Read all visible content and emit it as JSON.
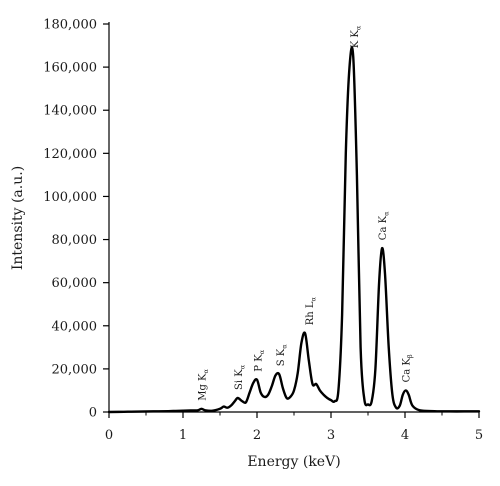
{
  "chart_data": {
    "type": "line",
    "xlabel": "Energy (keV)",
    "ylabel": "Intensity (a.u.)",
    "xlim": [
      0,
      5
    ],
    "ylim": [
      0,
      180000
    ],
    "x_ticks": [
      0,
      1,
      2,
      3,
      4,
      5
    ],
    "x_tick_labels": [
      "0",
      "1",
      "2",
      "3",
      "4",
      "5"
    ],
    "y_ticks": [
      0,
      20000,
      40000,
      60000,
      80000,
      100000,
      120000,
      140000,
      160000,
      180000
    ],
    "y_tick_labels": [
      "0",
      "20,000",
      "40,000",
      "60,000",
      "80,000",
      "100,000",
      "120,000",
      "140,000",
      "160,000",
      "180,000"
    ],
    "grid": false,
    "legend": "none",
    "line_color": "#000000",
    "series": [
      {
        "x": [
          0.0,
          0.2,
          0.4,
          0.6,
          0.8,
          0.9,
          1.0,
          1.1,
          1.2,
          1.25,
          1.3,
          1.4,
          1.5,
          1.55,
          1.6,
          1.65,
          1.7,
          1.74,
          1.8,
          1.85,
          1.9,
          1.95,
          2.0,
          2.05,
          2.1,
          2.15,
          2.2,
          2.25,
          2.3,
          2.35,
          2.4,
          2.45,
          2.5,
          2.55,
          2.6,
          2.65,
          2.7,
          2.75,
          2.8,
          2.85,
          2.9,
          2.95,
          3.0,
          3.05,
          3.1,
          3.15,
          3.2,
          3.25,
          3.3,
          3.35,
          3.4,
          3.45,
          3.5,
          3.55,
          3.6,
          3.65,
          3.69,
          3.73,
          3.78,
          3.83,
          3.88,
          3.93,
          3.97,
          4.01,
          4.05,
          4.1,
          4.2,
          4.4,
          4.6,
          4.8,
          5.0
        ],
        "y": [
          0,
          100,
          200,
          300,
          400,
          500,
          600,
          700,
          800,
          1500,
          800,
          600,
          1500,
          2500,
          2000,
          3000,
          5000,
          6500,
          5000,
          4500,
          9000,
          13500,
          15000,
          9000,
          7000,
          8000,
          12000,
          17000,
          17500,
          11000,
          6500,
          7000,
          10000,
          18000,
          32000,
          36500,
          24000,
          13000,
          13000,
          10000,
          8000,
          6500,
          5500,
          5000,
          10000,
          45000,
          120000,
          160000,
          165000,
          110000,
          30000,
          6000,
          3500,
          5000,
          20000,
          60000,
          76000,
          64000,
          30000,
          8000,
          2000,
          3000,
          8000,
          10000,
          8000,
          3000,
          800,
          400,
          300,
          300,
          300
        ]
      }
    ],
    "annotations": [
      {
        "main": "Mg K",
        "sub": "α",
        "x": 1.25,
        "y": 1500
      },
      {
        "main": "Si K",
        "sub": "α",
        "x": 1.74,
        "y": 6500
      },
      {
        "main": "P K",
        "sub": "α",
        "x": 2.01,
        "y": 15000
      },
      {
        "main": "S K",
        "sub": "α",
        "x": 2.31,
        "y": 17500
      },
      {
        "main": "Rh L",
        "sub": "α",
        "x": 2.7,
        "y": 36500
      },
      {
        "main": "K K",
        "sub": "α",
        "x": 3.31,
        "y": 165000
      },
      {
        "main": "Ca K",
        "sub": "α",
        "x": 3.69,
        "y": 76000
      },
      {
        "main": "Ca K",
        "sub": "β",
        "x": 4.01,
        "y": 10000
      }
    ]
  }
}
